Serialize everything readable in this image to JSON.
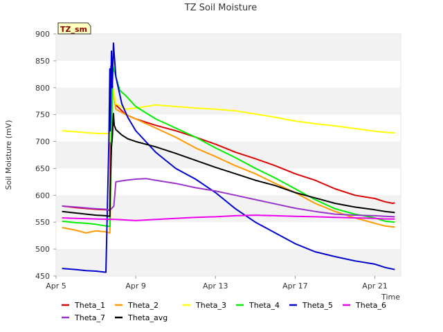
{
  "chart_data": {
    "type": "line",
    "title": "TZ Soil Moisture",
    "xlabel": "Time",
    "ylabel": "Soil Moisture (mV)",
    "badge": "TZ_sm",
    "ylim": [
      450,
      900
    ],
    "xlim": [
      0,
      17.3
    ],
    "y_ticks": [
      450,
      500,
      550,
      600,
      650,
      700,
      750,
      800,
      850,
      900
    ],
    "x_ticks": [
      {
        "day": 0,
        "label": "Apr 5"
      },
      {
        "day": 4,
        "label": "Apr 9"
      },
      {
        "day": 8,
        "label": "Apr 13"
      },
      {
        "day": 12,
        "label": "Apr 17"
      },
      {
        "day": 16,
        "label": "Apr 21"
      }
    ],
    "grid_bands": true,
    "legend_position": "bottom",
    "series": [
      {
        "name": "Theta_1",
        "color": "#dd0000",
        "x": [
          0.3,
          1,
          2,
          2.5,
          2.7,
          2.72,
          2.75,
          2.8,
          3,
          3.5,
          4,
          5,
          6,
          7,
          8,
          9,
          10,
          11,
          12,
          13,
          14,
          15,
          16,
          16.5,
          16.9,
          17
        ],
        "y": [
          580,
          577,
          574,
          573,
          572,
          620,
          840,
          810,
          768,
          750,
          742,
          730,
          720,
          708,
          695,
          680,
          668,
          655,
          640,
          628,
          612,
          600,
          594,
          588,
          585,
          586
        ]
      },
      {
        "name": "Theta_2",
        "color": "#ff9900",
        "x": [
          0.3,
          1,
          1.5,
          2,
          2.5,
          2.7,
          2.72,
          2.8,
          3,
          3.5,
          4,
          5,
          6,
          7,
          8,
          9,
          10,
          11,
          12,
          13,
          14,
          15,
          16,
          16.5,
          17
        ],
        "y": [
          540,
          535,
          530,
          534,
          532,
          530,
          560,
          812,
          760,
          750,
          742,
          725,
          708,
          688,
          672,
          655,
          640,
          622,
          605,
          585,
          570,
          558,
          548,
          543,
          541
        ]
      },
      {
        "name": "Theta_3",
        "color": "#ffff00",
        "x": [
          0.3,
          1,
          2,
          2.5,
          2.7,
          2.72,
          2.85,
          3,
          3.5,
          4,
          5,
          6,
          7,
          8,
          9,
          10,
          11,
          12,
          13,
          14,
          15,
          16,
          16.5,
          17
        ],
        "y": [
          720,
          718,
          715,
          715,
          714,
          700,
          800,
          770,
          760,
          762,
          768,
          765,
          762,
          760,
          757,
          751,
          745,
          738,
          733,
          729,
          724,
          719,
          717,
          716
        ]
      },
      {
        "name": "Theta_4",
        "color": "#00ee00",
        "x": [
          0.3,
          1,
          1.5,
          2,
          2.5,
          2.7,
          2.72,
          2.85,
          3.2,
          3.5,
          4,
          5,
          6,
          7,
          8,
          9,
          10,
          11,
          12,
          13,
          14,
          15,
          16,
          16.5,
          17
        ],
        "y": [
          552,
          549,
          548,
          546,
          543,
          542,
          585,
          840,
          795,
          785,
          765,
          742,
          725,
          708,
          688,
          670,
          650,
          632,
          612,
          592,
          575,
          565,
          558,
          552,
          550
        ]
      },
      {
        "name": "Theta_5",
        "color": "#0000cc",
        "x": [
          0.3,
          1,
          1.5,
          2,
          2.5,
          2.65,
          2.7,
          2.72,
          2.78,
          2.82,
          2.88,
          2.92,
          3,
          3.3,
          3.6,
          4,
          5,
          6,
          7,
          8,
          9,
          10,
          11,
          12,
          13,
          14,
          15,
          16,
          16.5,
          17
        ],
        "y": [
          464,
          462,
          460,
          459,
          457,
          700,
          835,
          720,
          868,
          800,
          883,
          860,
          820,
          770,
          745,
          720,
          680,
          650,
          630,
          605,
          575,
          550,
          530,
          510,
          495,
          486,
          478,
          472,
          466,
          462
        ]
      },
      {
        "name": "Theta_6",
        "color": "#ee00ee",
        "x": [
          0.3,
          1,
          2,
          3,
          4,
          5,
          6,
          7,
          8,
          9,
          10,
          11,
          12,
          13,
          14,
          15,
          16,
          16.5,
          17
        ],
        "y": [
          558,
          557,
          556,
          555,
          553,
          555,
          557,
          559,
          560,
          562,
          563,
          562,
          561,
          560,
          559,
          558,
          557,
          556,
          556
        ]
      },
      {
        "name": "Theta_7",
        "color": "#9933cc",
        "x": [
          0.3,
          1,
          2,
          2.5,
          2.7,
          2.9,
          3,
          3.5,
          4,
          4.5,
          5,
          6,
          7,
          8,
          9,
          10,
          11,
          12,
          13,
          14,
          15,
          16,
          16.5,
          17
        ],
        "y": [
          580,
          578,
          575,
          574,
          572,
          580,
          625,
          628,
          630,
          631,
          628,
          622,
          614,
          608,
          600,
          592,
          584,
          576,
          570,
          565,
          563,
          562,
          561,
          560
        ]
      },
      {
        "name": "Theta_avg",
        "color": "#000000",
        "x": [
          0.3,
          1,
          2,
          2.5,
          2.7,
          2.72,
          2.78,
          2.82,
          2.88,
          2.92,
          3,
          3.3,
          3.6,
          4,
          5,
          6,
          7,
          8,
          9,
          10,
          11,
          12,
          13,
          14,
          15,
          16,
          16.5,
          17
        ],
        "y": [
          570,
          567,
          563,
          562,
          561,
          615,
          690,
          705,
          752,
          730,
          722,
          712,
          705,
          700,
          690,
          678,
          665,
          652,
          640,
          628,
          618,
          605,
          595,
          585,
          578,
          573,
          570,
          568
        ]
      }
    ]
  }
}
